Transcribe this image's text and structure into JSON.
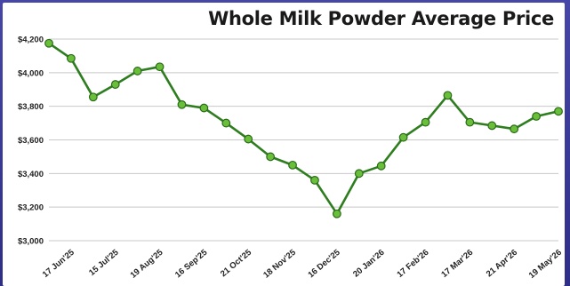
{
  "chart_data": {
    "type": "line",
    "title": "Whole Milk Powder Average Price",
    "xlabel": "",
    "ylabel": "",
    "ylim": [
      3000,
      4200
    ],
    "yticks": [
      "$3,000",
      "$3,200",
      "$3,400",
      "$3,600",
      "$3,800",
      "$4,000",
      "$4,200"
    ],
    "ytick_values": [
      3000,
      3200,
      3400,
      3600,
      3800,
      4000,
      4200
    ],
    "xtick_labels": [
      "17 Jun'25",
      "15 Jul'25",
      "19 Aug'25",
      "16 Sep'25",
      "21 Oct'25",
      "18 Nov'25",
      "16 Dec'25",
      "20 Jan'26",
      "17 Feb'26",
      "17 Mar'26",
      "21 Apr'26",
      "19 May'26"
    ],
    "xtick_positions": [
      1,
      3,
      5,
      7,
      9,
      11,
      13,
      15,
      17,
      19,
      21,
      23
    ],
    "grid": true,
    "legend": "none",
    "line_color": "#2e7d1f",
    "marker_color": "#6abf3a",
    "series": [
      {
        "values": [
          4175,
          4085,
          3855,
          3930,
          4010,
          4035,
          3810,
          3790,
          3700,
          3605,
          3500,
          3450,
          3360,
          3160,
          3400,
          3445,
          3615,
          3705,
          3865,
          3705,
          3685,
          3665,
          3740,
          3770
        ]
      }
    ]
  }
}
